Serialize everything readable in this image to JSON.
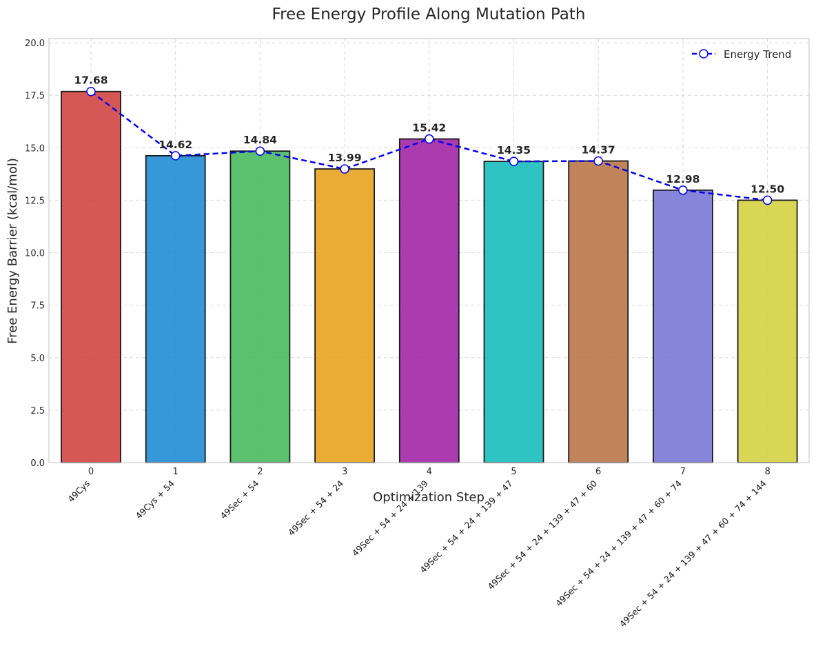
{
  "chart_data": {
    "type": "bar",
    "title": "Free Energy Profile Along Mutation Path",
    "xlabel": "Optimization Step",
    "ylabel": "Free Energy Barrier (kcal/mol)",
    "ylim": [
      0,
      20.2
    ],
    "yticks": [
      "0.0",
      "2.5",
      "5.0",
      "7.5",
      "10.0",
      "12.5",
      "15.0",
      "17.5",
      "20.0"
    ],
    "x": [
      "0",
      "1",
      "2",
      "3",
      "4",
      "5",
      "6",
      "7",
      "8"
    ],
    "categories": [
      "49Cys",
      "49Cys + 54",
      "49Sec + 54",
      "49Sec + 54 + 24",
      "49Sec + 54 + 24 + 139",
      "49Sec + 54 + 24 + 139 + 47",
      "49Sec + 54 + 24 + 139 + 47 + 60",
      "49Sec + 54 + 24 + 139 + 47 + 60 + 74",
      "49Sec + 54 + 24 + 139 + 47 + 60 + 74 + 144"
    ],
    "values": [
      17.68,
      14.62,
      14.84,
      13.99,
      15.42,
      14.35,
      14.37,
      12.98,
      12.5
    ],
    "value_labels": [
      "17.68",
      "14.62",
      "14.84",
      "13.99",
      "15.42",
      "14.35",
      "14.37",
      "12.98",
      "12.50"
    ],
    "bar_colors": [
      "#d0403e",
      "#1a89d4",
      "#44b85a",
      "#e8a11a",
      "#a020a5",
      "#12bcbc",
      "#b87343",
      "#7474d4",
      "#d4d03e"
    ],
    "series": [
      {
        "name": "Energy Trend",
        "values": [
          17.68,
          14.62,
          14.84,
          13.99,
          15.42,
          14.35,
          14.37,
          12.98,
          12.5
        ],
        "color": "#0000ee",
        "style": "dashed",
        "marker": "circle"
      }
    ],
    "grid": true,
    "legend": "top-right"
  }
}
